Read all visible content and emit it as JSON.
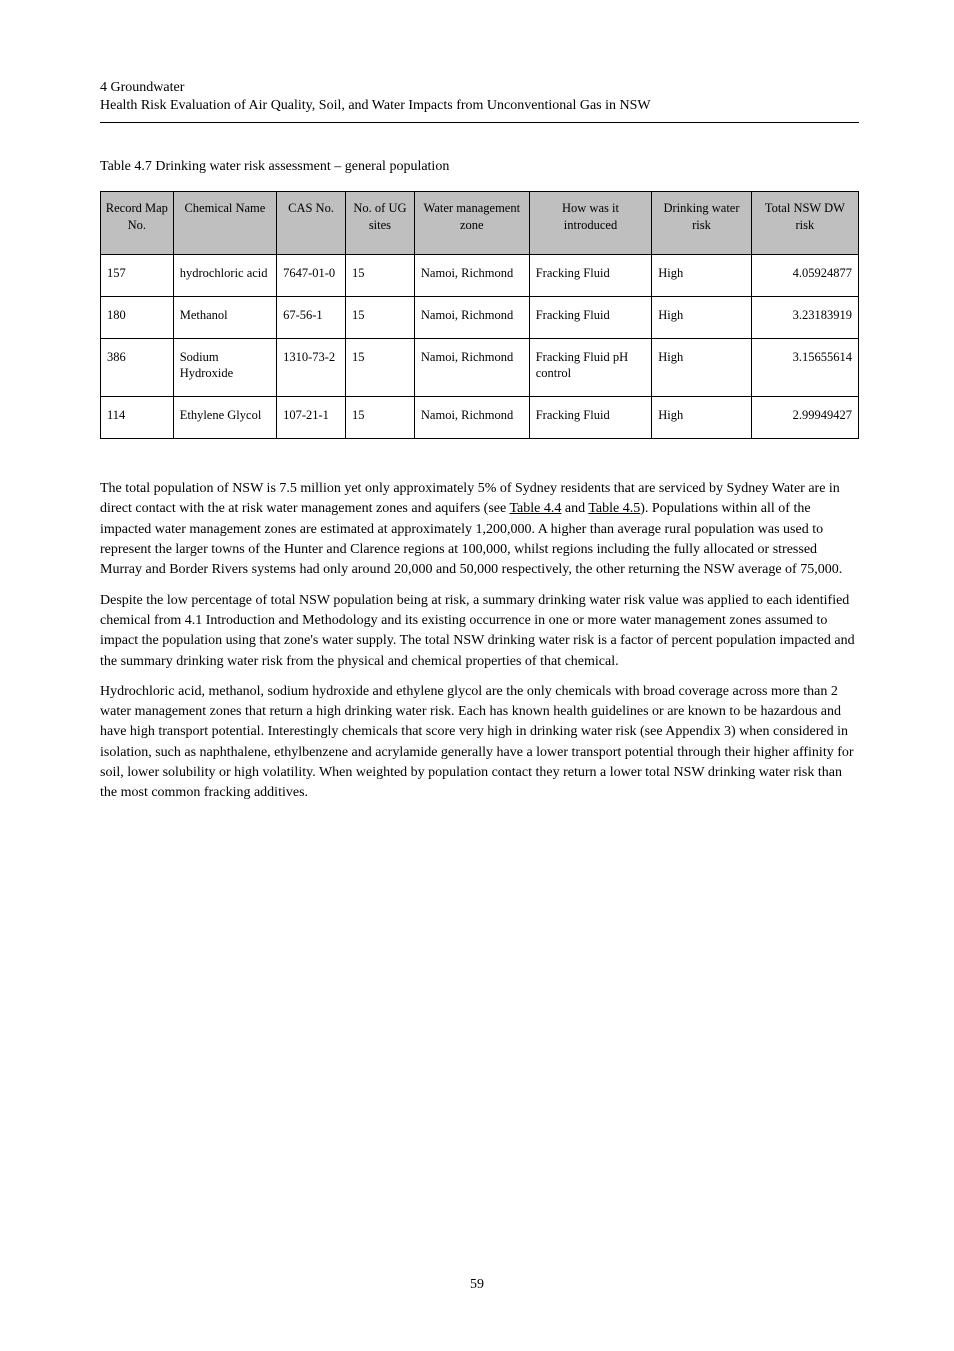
{
  "header": {
    "title_prefix": "4     ",
    "title": "Groundwater",
    "subtitle": "Health Risk Evaluation of Air Quality, Soil, and Water Impacts from Unconventional Gas in NSW"
  },
  "table": {
    "caption": "Table 4.7 Drinking water risk assessment – general population",
    "columns": [
      "Record Map No.",
      "Chemical Name",
      "CAS No.",
      "No. of UG sites",
      "Water management zone",
      "How was it introduced",
      "Drinking water risk",
      "Total NSW DW risk"
    ],
    "col_widths_pct": [
      9.5,
      13.5,
      9,
      9,
      15,
      16,
      13,
      14
    ],
    "header_bg": "#bfbfbf",
    "border_color": "#000000",
    "font_size_pt": 12.5,
    "rows": [
      {
        "map_no": "157",
        "name": "hydrochloric acid",
        "cas": "7647-01-0",
        "sites": "15",
        "zone": "Namoi, Richmond",
        "how": "Fracking Fluid",
        "risk": "High",
        "total": "4.05924877"
      },
      {
        "map_no": "180",
        "name": "Methanol",
        "cas": "67-56-1",
        "sites": "15",
        "zone": "Namoi, Richmond",
        "how": "Fracking Fluid",
        "risk": "High",
        "total": "3.23183919"
      },
      {
        "map_no": "386",
        "name": "Sodium Hydroxide",
        "cas": "1310-73-2",
        "sites": "15",
        "zone": "Namoi, Richmond",
        "how": "Fracking Fluid pH control",
        "risk": "High",
        "total": "3.15655614"
      },
      {
        "map_no": "114",
        "name": "Ethylene Glycol",
        "cas": "107-21-1",
        "sites": "15",
        "zone": "Namoi, Richmond",
        "how": "Fracking Fluid",
        "risk": "High",
        "total": "2.99949427"
      }
    ]
  },
  "body": {
    "p1_pre": "The total population of NSW is 7.5 million yet only approximately 5% of Sydney residents that are serviced by Sydney Water are in direct contact with the at risk water management zones and aquifers (see ",
    "p1_link1": "Table 4.4",
    "p1_mid": " and ",
    "p1_link2": "Table 4.5",
    "p1_post": ").  Populations within all of the impacted water management zones are estimated at approximately 1,200,000.  A higher than average rural population was used to represent the larger towns of the Hunter and Clarence regions at 100,000, whilst regions including the fully allocated or stressed Murray and Border Rivers systems had only around 20,000 and 50,000 respectively, the other returning the NSW average of 75,000.",
    "p2_a": "Despite the low percentage of total NSW population being at risk, a summary drinking water risk value was applied to each identified chemical from ",
    "p2_a_ref": "4.1 Introduction and Methodology",
    "p2_a_post": " and its existing occurrence in one or more water management zones assumed to impact the population using that zone's water supply.  The total NSW drinking water risk is a factor of percent population impacted and the summary drinking water risk from the physical and chemical properties of that chemical.",
    "p2_b": "Hydrochloric acid, methanol, sodium hydroxide and ethylene glycol are the only chemicals with broad coverage across more than 2 water management zones that return a high drinking water risk.  Each has known health guidelines or are known to be hazardous and have high transport potential.  Interestingly chemicals that score very high in drinking water risk (see Appendix 3) when considered in isolation, such as naphthalene, ethylbenzene and acrylamide generally have a lower transport potential through their higher affinity for soil, lower solubility or high volatility.  When weighted by population contact they return a lower total NSW drinking water risk than the most common fracking additives."
  },
  "page_number": "59"
}
